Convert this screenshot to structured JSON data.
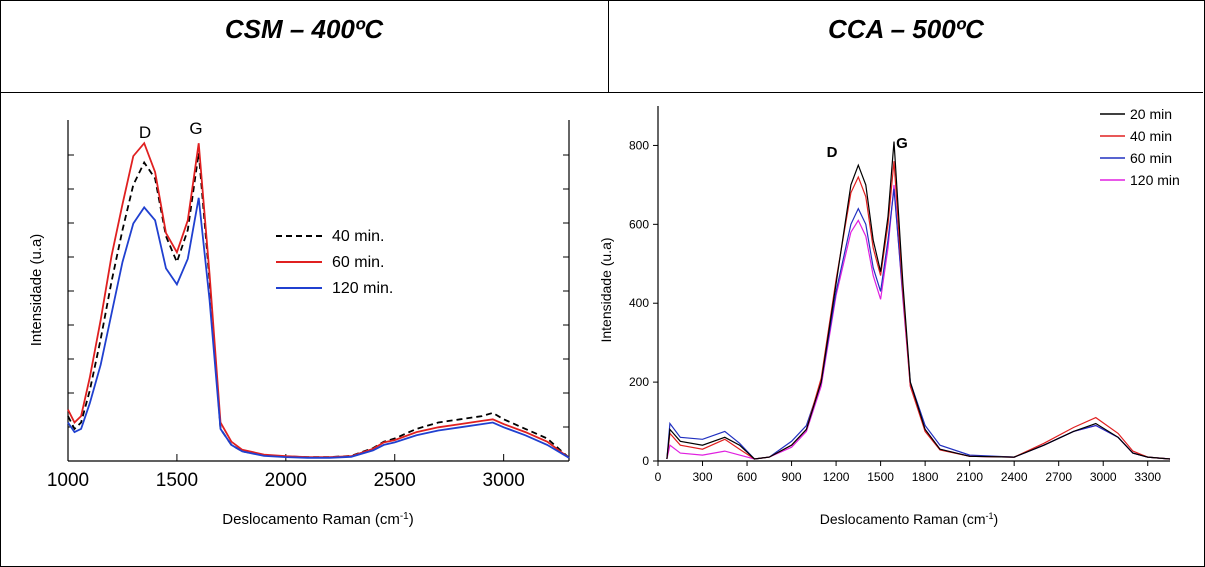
{
  "panels": [
    {
      "title": "CSM – 400ºC"
    },
    {
      "title": "CCA – 500ºC"
    }
  ],
  "chart_data": [
    {
      "type": "line",
      "title": "CSM – 400ºC",
      "xlabel": "Deslocamento Raman (cm-1)",
      "ylabel": "Intensidade (u.a)",
      "xlim": [
        1000,
        3300
      ],
      "ylim": [
        0,
        1
      ],
      "xticks": [
        1000,
        1500,
        2000,
        2500,
        3000
      ],
      "legend_position": "center-right",
      "peak_labels": [
        "D",
        "G"
      ],
      "series": [
        {
          "name": "40 min.",
          "color": "#000000",
          "dash": true,
          "x": [
            1000,
            1030,
            1060,
            1100,
            1150,
            1200,
            1250,
            1300,
            1350,
            1400,
            1450,
            1500,
            1550,
            1600,
            1650,
            1700,
            1750,
            1800,
            1900,
            2000,
            2100,
            2200,
            2300,
            2400,
            2450,
            2500,
            2600,
            2700,
            2800,
            2900,
            2950,
            3000,
            3100,
            3200,
            3300
          ],
          "y": [
            0.14,
            0.1,
            0.12,
            0.22,
            0.38,
            0.56,
            0.72,
            0.86,
            0.93,
            0.88,
            0.7,
            0.62,
            0.72,
            0.96,
            0.56,
            0.1,
            0.05,
            0.03,
            0.018,
            0.014,
            0.012,
            0.012,
            0.016,
            0.04,
            0.06,
            0.07,
            0.1,
            0.12,
            0.13,
            0.14,
            0.15,
            0.13,
            0.1,
            0.07,
            0.01
          ]
        },
        {
          "name": "60 min.",
          "color": "#e02020",
          "dash": false,
          "x": [
            1000,
            1030,
            1060,
            1100,
            1150,
            1200,
            1250,
            1300,
            1350,
            1400,
            1450,
            1500,
            1550,
            1600,
            1650,
            1700,
            1750,
            1800,
            1900,
            2000,
            2100,
            2200,
            2300,
            2400,
            2450,
            2500,
            2600,
            2700,
            2800,
            2900,
            2950,
            3000,
            3100,
            3200,
            3300
          ],
          "y": [
            0.16,
            0.12,
            0.14,
            0.26,
            0.44,
            0.64,
            0.8,
            0.95,
            0.99,
            0.9,
            0.71,
            0.65,
            0.75,
            0.99,
            0.58,
            0.12,
            0.06,
            0.035,
            0.02,
            0.015,
            0.012,
            0.012,
            0.015,
            0.038,
            0.058,
            0.065,
            0.09,
            0.105,
            0.115,
            0.125,
            0.13,
            0.115,
            0.09,
            0.06,
            0.01
          ]
        },
        {
          "name": "120 min.",
          "color": "#2040d0",
          "dash": false,
          "x": [
            1000,
            1030,
            1060,
            1100,
            1150,
            1200,
            1250,
            1300,
            1350,
            1400,
            1450,
            1500,
            1550,
            1600,
            1650,
            1700,
            1750,
            1800,
            1900,
            2000,
            2100,
            2200,
            2300,
            2400,
            2450,
            2500,
            2600,
            2700,
            2800,
            2900,
            2950,
            3000,
            3100,
            3200,
            3300
          ],
          "y": [
            0.12,
            0.09,
            0.1,
            0.18,
            0.3,
            0.46,
            0.62,
            0.74,
            0.79,
            0.75,
            0.6,
            0.55,
            0.63,
            0.82,
            0.5,
            0.1,
            0.05,
            0.03,
            0.016,
            0.012,
            0.01,
            0.01,
            0.013,
            0.033,
            0.05,
            0.058,
            0.08,
            0.095,
            0.105,
            0.115,
            0.12,
            0.105,
            0.08,
            0.05,
            0.01
          ]
        }
      ]
    },
    {
      "type": "line",
      "title": "CCA – 500ºC",
      "xlabel": "Deslocamento Raman (cm-1)",
      "ylabel": "Intensidade (u.a)",
      "xlim": [
        0,
        3450
      ],
      "ylim": [
        0,
        900
      ],
      "xticks": [
        0,
        300,
        600,
        900,
        1200,
        1500,
        1800,
        2100,
        2400,
        2700,
        3000,
        3300
      ],
      "yticks": [
        0,
        200,
        400,
        600,
        800
      ],
      "legend_position": "top-right",
      "peak_labels": [
        "D",
        "G"
      ],
      "series": [
        {
          "name": "20 min",
          "color": "#000000",
          "x": [
            60,
            80,
            150,
            300,
            450,
            550,
            650,
            750,
            900,
            1000,
            1100,
            1200,
            1300,
            1350,
            1400,
            1450,
            1500,
            1550,
            1590,
            1650,
            1700,
            1800,
            1900,
            2100,
            2400,
            2600,
            2800,
            2950,
            3100,
            3200,
            3300,
            3450
          ],
          "y": [
            5,
            80,
            50,
            40,
            60,
            40,
            5,
            10,
            40,
            80,
            200,
            450,
            700,
            750,
            700,
            560,
            480,
            620,
            810,
            450,
            200,
            80,
            30,
            12,
            10,
            40,
            75,
            95,
            60,
            20,
            10,
            5
          ]
        },
        {
          "name": "40 min",
          "color": "#e02020",
          "x": [
            60,
            80,
            150,
            300,
            450,
            550,
            650,
            750,
            900,
            1000,
            1100,
            1200,
            1300,
            1350,
            1400,
            1450,
            1500,
            1550,
            1590,
            1650,
            1700,
            1800,
            1900,
            2100,
            2400,
            2600,
            2800,
            2950,
            3100,
            3200,
            3300,
            3450
          ],
          "y": [
            5,
            70,
            40,
            30,
            55,
            30,
            5,
            10,
            40,
            80,
            210,
            460,
            680,
            720,
            670,
            540,
            470,
            600,
            760,
            430,
            190,
            75,
            28,
            12,
            10,
            45,
            85,
            110,
            70,
            25,
            10,
            5
          ]
        },
        {
          "name": "60 min",
          "color": "#2030c0",
          "x": [
            60,
            80,
            150,
            300,
            450,
            550,
            650,
            750,
            900,
            1000,
            1100,
            1200,
            1300,
            1350,
            1400,
            1450,
            1500,
            1550,
            1590,
            1650,
            1700,
            1800,
            1900,
            2100,
            2400,
            2600,
            2800,
            2950,
            3100,
            3200,
            3300,
            3450
          ],
          "y": [
            5,
            95,
            60,
            55,
            75,
            45,
            5,
            10,
            50,
            90,
            200,
            430,
            600,
            640,
            600,
            490,
            430,
            560,
            690,
            420,
            200,
            90,
            40,
            15,
            10,
            40,
            75,
            90,
            60,
            20,
            10,
            5
          ]
        },
        {
          "name": "120 min",
          "color": "#e020e0",
          "x": [
            60,
            80,
            150,
            300,
            450,
            550,
            650,
            750,
            900,
            1000,
            1100,
            1200,
            1300,
            1350,
            1400,
            1450,
            1500,
            1550,
            1590,
            1650,
            1700,
            1800,
            1900,
            2100,
            2400,
            2600,
            2800,
            2950,
            3100,
            3200,
            3300,
            3450
          ],
          "y": [
            5,
            40,
            20,
            15,
            25,
            15,
            5,
            10,
            35,
            75,
            190,
            420,
            580,
            610,
            570,
            470,
            410,
            540,
            700,
            410,
            190,
            80,
            30,
            12,
            10,
            40,
            75,
            90,
            60,
            20,
            10,
            5
          ]
        }
      ]
    }
  ]
}
